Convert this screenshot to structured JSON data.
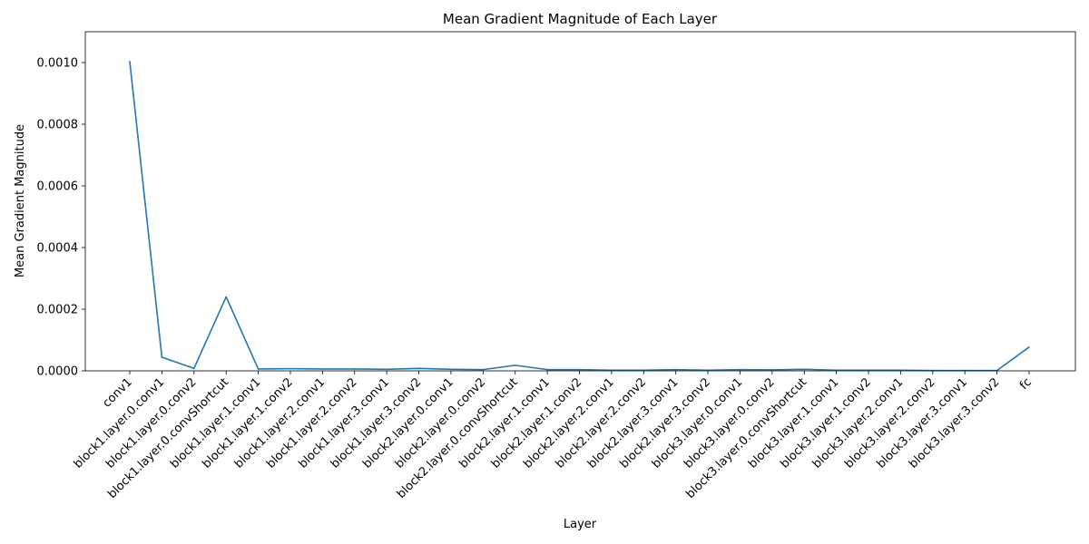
{
  "chart_data": {
    "type": "line",
    "title": "Mean Gradient Magnitude of Each Layer",
    "xlabel": "Layer",
    "ylabel": "Mean Gradient Magnitude",
    "ylim": [
      0,
      0.0011
    ],
    "yticks": [
      "0.0000",
      "0.0002",
      "0.0004",
      "0.0006",
      "0.0008",
      "0.0010"
    ],
    "ytick_values": [
      0,
      0.0002,
      0.0004,
      0.0006,
      0.0008,
      0.001
    ],
    "grid": false,
    "legend": "none",
    "color": "#1f77b4",
    "categories": [
      "conv1",
      "block1.layer.0.conv1",
      "block1.layer.0.conv2",
      "block1.layer.0.convShortcut",
      "block1.layer.1.conv1",
      "block1.layer.1.conv2",
      "block1.layer.2.conv1",
      "block1.layer.2.conv2",
      "block1.layer.3.conv1",
      "block1.layer.3.conv2",
      "block2.layer.0.conv1",
      "block2.layer.0.conv2",
      "block2.layer.0.convShortcut",
      "block2.layer.1.conv1",
      "block2.layer.1.conv2",
      "block2.layer.2.conv1",
      "block2.layer.2.conv2",
      "block2.layer.3.conv1",
      "block2.layer.3.conv2",
      "block3.layer.0.conv1",
      "block3.layer.0.conv2",
      "block3.layer.0.convShortcut",
      "block3.layer.1.conv1",
      "block3.layer.1.conv2",
      "block3.layer.2.conv1",
      "block3.layer.2.conv2",
      "block3.layer.3.conv1",
      "block3.layer.3.conv2",
      "fc"
    ],
    "values": [
      0.001003,
      4.4e-05,
      8e-06,
      0.00024,
      6e-06,
      7e-06,
      6e-06,
      6e-06,
      5e-06,
      8e-06,
      5e-06,
      4e-06,
      1.8e-05,
      4e-06,
      4e-06,
      2e-06,
      2e-06,
      4e-06,
      2e-06,
      4e-06,
      3e-06,
      5e-06,
      2e-06,
      2e-06,
      2e-06,
      1e-06,
      1e-06,
      1e-06,
      7.7e-05
    ]
  }
}
